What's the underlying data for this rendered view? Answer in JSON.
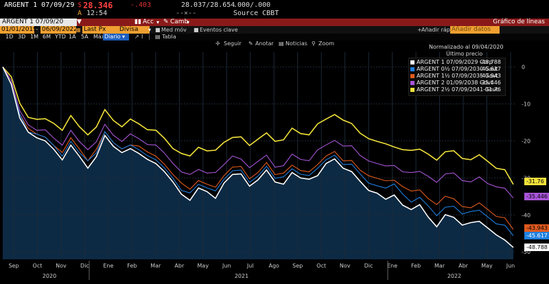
{
  "header": {
    "ticker": "ARGENT 1 07/09/29",
    "price": "28.346",
    "price_prefix": "$",
    "change": "-.403",
    "bidask": "28.037/28.654",
    "yield": ".000/.000",
    "marker": "A",
    "time": "12:54",
    "dashes": "--×--",
    "source": "Source CBBT"
  },
  "redbar": {
    "ticker_box": "ARGENT 1 07/09/20",
    "acc_label": "Acc",
    "camb_label": "Camb",
    "title": "Gráfico de líneas"
  },
  "controls": {
    "start_date": "01/01/2019",
    "end_date": "06/09/2022",
    "field": "Last Px",
    "currency": "Divisa local",
    "med_mov": "Med móv",
    "events": "Eventos clave",
    "add_label": "Añadir rápi",
    "add_data": "Añadir datos"
  },
  "periods": [
    "1D",
    "3D",
    "1M",
    "6M",
    "YTD",
    "1A",
    "5A",
    "Máx"
  ],
  "freq": "Diario",
  "table_label": "Tabla",
  "chart_tools": [
    "Seguir",
    "Anotar",
    "Noticias",
    "Zoom"
  ],
  "legend": {
    "title": "Normalizado al 09/04/2020",
    "subtitle": "Último precio",
    "entries": [
      {
        "name": "ARGENT 1 07/09/2029 Corp",
        "value": "-48.788",
        "color": "#ffffff"
      },
      {
        "name": "ARGENT 0½ 07/09/2030 Govt",
        "value": "-45.617",
        "color": "#1e7fe0"
      },
      {
        "name": "ARGENT 1½ 07/09/2035 Govt",
        "value": "-43.943",
        "color": "#e05a1e"
      },
      {
        "name": "ARGENT 2 01/09/2038 Govt",
        "value": "-35.446",
        "color": "#a855d8"
      },
      {
        "name": "ARGENT 2½ 07/09/2041 Govt",
        "value": "-31.76",
        "color": "#f2e23a"
      }
    ]
  },
  "chart_data": {
    "type": "line",
    "y_ticks": [
      "0",
      "-10",
      "-20",
      "-30",
      "-40",
      "-50"
    ],
    "ylim": [
      -52,
      4
    ],
    "month_labels": [
      "Sep",
      "Oct",
      "Nov",
      "Dic",
      "Ene",
      "Feb",
      "Mar",
      "Abr",
      "May",
      "Jun",
      "Jul",
      "Ago",
      "Sep",
      "Oct",
      "Nov",
      "Dic",
      "Ene",
      "Feb",
      "Mar",
      "Abr",
      "May",
      "Jun"
    ],
    "year_labels": [
      "2020",
      "2021",
      "2022"
    ],
    "last_values": {
      "white": "-48.788",
      "blue": "-45.617",
      "orange": "-43.943",
      "purple": "-35.446",
      "yellow": "-31.76"
    },
    "series": [
      {
        "key": "white",
        "color": "#ffffff",
        "values": [
          0,
          -5,
          -14,
          -17,
          -19,
          -21,
          -22,
          -24,
          -22,
          -25,
          -26,
          -24,
          -20,
          -21,
          -22,
          -23,
          -24,
          -24,
          -26,
          -29,
          -31,
          -34,
          -36,
          -33,
          -34,
          -35,
          -31,
          -30,
          -29,
          -31,
          -31,
          -29,
          -30,
          -31,
          -30,
          -30,
          -29,
          -30,
          -27,
          -24,
          -27,
          -29,
          -31,
          -33,
          -34,
          -36,
          -35,
          -37,
          -38,
          -38,
          -41,
          -42,
          -40,
          -42,
          -42,
          -41,
          -43,
          -44,
          -44,
          -47,
          -48.788
        ]
      },
      {
        "key": "blue",
        "color": "#1e7fe0",
        "values": [
          0,
          -5,
          -13,
          -17,
          -18,
          -20,
          -21,
          -23,
          -21,
          -24,
          -24,
          -23,
          -19,
          -20,
          -21,
          -22,
          -23,
          -23,
          -25,
          -28,
          -30,
          -33,
          -34,
          -32,
          -33,
          -33,
          -30,
          -29,
          -28,
          -30,
          -30,
          -28,
          -29,
          -29,
          -29,
          -29,
          -28,
          -28,
          -26,
          -23,
          -26,
          -27,
          -29,
          -31,
          -32,
          -33,
          -32,
          -34,
          -36,
          -36,
          -38,
          -39,
          -38,
          -39,
          -39,
          -38,
          -40,
          -41,
          -41,
          -43,
          -45.617
        ]
      },
      {
        "key": "orange",
        "color": "#e05a1e",
        "values": [
          0,
          -5,
          -13,
          -16,
          -18,
          -20,
          -21,
          -22,
          -20,
          -23,
          -24,
          -22,
          -19,
          -20,
          -21,
          -22,
          -22,
          -22,
          -24,
          -27,
          -29,
          -31,
          -33,
          -31,
          -32,
          -32,
          -29,
          -28,
          -27,
          -29,
          -29,
          -27,
          -28,
          -28,
          -28,
          -28,
          -27,
          -27,
          -25,
          -22,
          -25,
          -26,
          -28,
          -29,
          -30,
          -31,
          -31,
          -32,
          -33,
          -34,
          -36,
          -36,
          -35,
          -37,
          -37,
          -37,
          -38,
          -39,
          -39,
          -41,
          -43.943
        ]
      },
      {
        "key": "purple",
        "color": "#a855d8",
        "values": [
          0,
          -4,
          -12,
          -15,
          -17,
          -18,
          -19,
          -20,
          -18,
          -21,
          -21,
          -20,
          -17,
          -18,
          -19,
          -19,
          -20,
          -20,
          -21,
          -24,
          -26,
          -28,
          -29,
          -28,
          -29,
          -28,
          -26,
          -25,
          -25,
          -26,
          -26,
          -25,
          -26,
          -26,
          -25,
          -25,
          -24,
          -23,
          -22,
          -19,
          -21,
          -22,
          -24,
          -25,
          -26,
          -27,
          -27,
          -28,
          -28,
          -29,
          -30,
          -30,
          -29,
          -30,
          -30,
          -30,
          -31,
          -32,
          -31,
          -33,
          -35.446
        ]
      },
      {
        "key": "yellow",
        "color": "#f2e23a",
        "values": [
          0,
          -3,
          -10,
          -13,
          -14,
          -15,
          -15,
          -16,
          -14,
          -17,
          -17,
          -16,
          -13,
          -14,
          -15,
          -15,
          -16,
          -16,
          -17,
          -20,
          -22,
          -23,
          -24,
          -22,
          -23,
          -22,
          -20,
          -20,
          -19,
          -20,
          -20,
          -19,
          -19,
          -19,
          -18,
          -18,
          -17,
          -16,
          -15,
          -12,
          -14,
          -16,
          -18,
          -19,
          -20,
          -21,
          -22,
          -22,
          -22,
          -23,
          -24,
          -24,
          -23,
          -24,
          -24,
          -24,
          -25,
          -26,
          -26,
          -28,
          -31.76
        ]
      }
    ]
  }
}
